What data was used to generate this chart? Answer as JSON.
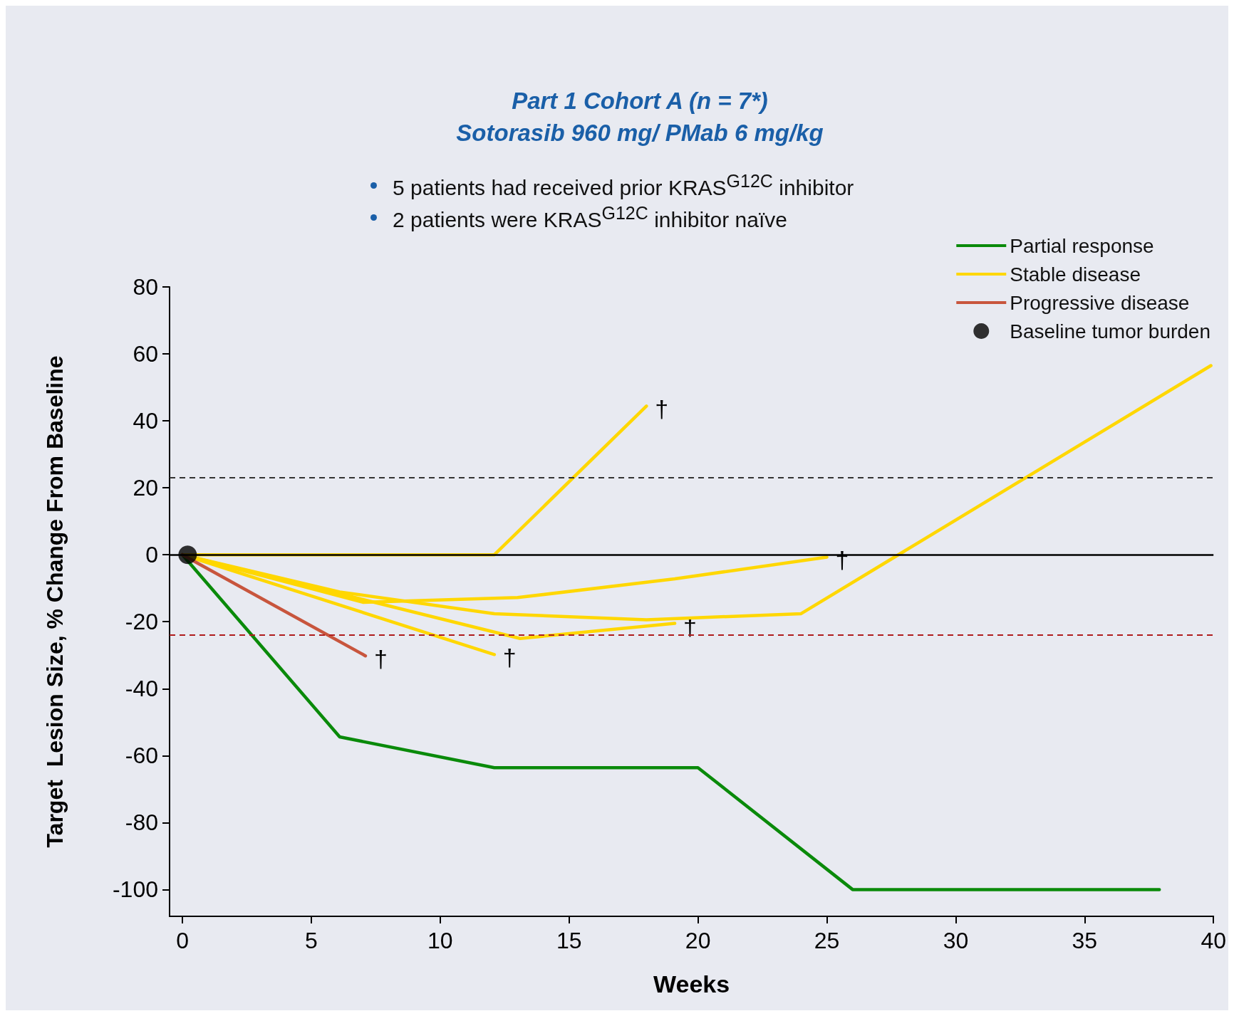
{
  "chart_data": {
    "type": "line",
    "title": "Part 1 Cohort A (n = 7*)",
    "subtitle": "Sotorasib 960 mg/ PMab 6 mg/kg",
    "annotations": [
      "5 patients had received prior KRAS$^{G12C}$ inhibitor",
      "2 patients were KRAS$^{G12C}$ inhibitor naïve",
      {
        "text": "†",
        "x": 18.0,
        "y": 44.4
      },
      {
        "text": "†",
        "x": 25.0,
        "y": -0.7
      },
      {
        "text": "†",
        "x": 19.1,
        "y": -20.5
      },
      {
        "text": "†",
        "x": 12.1,
        "y": -29.8
      },
      {
        "text": "†",
        "x": 7.1,
        "y": -30.2
      }
    ],
    "xlabel": "Weeks",
    "ylabel": "Target  Lesion Size, % Change From Baseline",
    "series": [
      {
        "name": "Partial response",
        "color": "#0a8a0a",
        "x": [
          0,
          6.1,
          12.1,
          20.0,
          26.0,
          37.9
        ],
        "values": [
          0,
          -54.4,
          -63.6,
          -63.6,
          -100,
          -100
        ]
      },
      {
        "name": "Stable disease",
        "color": "#ffd700",
        "x": [
          0,
          12.1,
          18.0
        ],
        "values": [
          0,
          0,
          44.4
        ]
      },
      {
        "color": "#ffd700",
        "x": [
          0,
          7.0,
          13.0,
          19.1,
          25.0
        ],
        "values": [
          0,
          -14.2,
          -12.8,
          -7.2,
          -0.7
        ]
      },
      {
        "color": "#ffd700",
        "x": [
          0,
          6.1,
          12.1,
          18.0,
          24.0,
          39.9
        ],
        "values": [
          0,
          -11.1,
          -17.6,
          -19.4,
          -17.6,
          56.5
        ]
      },
      {
        "color": "#ffd700",
        "x": [
          0,
          13.1,
          19.1
        ],
        "values": [
          0,
          -25.0,
          -20.5
        ]
      },
      {
        "color": "#ffd700",
        "x": [
          0,
          12.1
        ],
        "values": [
          0,
          -29.8
        ]
      },
      {
        "name": "Progressive disease",
        "color": "#c8553d",
        "x": [
          0,
          7.1
        ],
        "values": [
          0,
          -30.2
        ]
      },
      {
        "name": "Baseline tumor burden",
        "type": "scatter",
        "marker": "circle",
        "color": "#000000",
        "x": [
          0.2
        ],
        "values": [
          0
        ]
      }
    ],
    "xlim": [
      -0.5,
      40
    ],
    "xticks": [
      0,
      5,
      10,
      15,
      20,
      25,
      30,
      35,
      40
    ],
    "ylim": [
      -108,
      80
    ],
    "yticks": [
      -100,
      -80,
      -60,
      -40,
      -20,
      0,
      20,
      40,
      60,
      80
    ],
    "ref_lines": [
      {
        "axis": "y",
        "value": 0,
        "color": "#000000",
        "line_style": "solid"
      },
      {
        "axis": "y",
        "value": 23,
        "color": "#333333",
        "line_style": "dashed"
      },
      {
        "axis": "y",
        "value": -24,
        "color": "#b01c1c",
        "line_style": "dashed"
      }
    ],
    "grid": false,
    "legend": "top right",
    "marker": "none"
  }
}
